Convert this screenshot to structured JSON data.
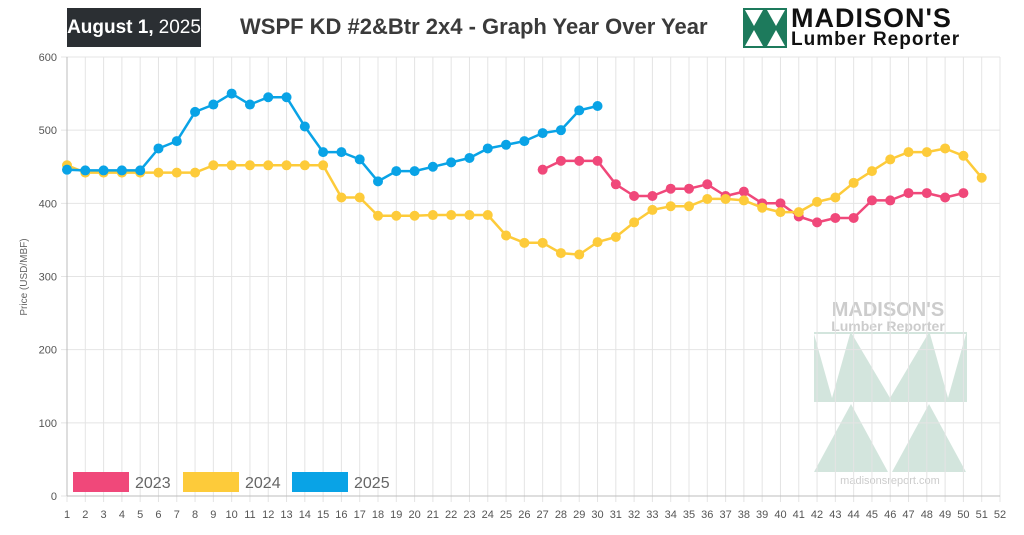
{
  "header": {
    "date_bold": "August 1,",
    "date_year": "2025",
    "title": "WSPF KD #2&Btr 2x4 - Graph Year Over Year",
    "logo_line1": "MADISON'S",
    "logo_line2": "Lumber Reporter"
  },
  "watermark": {
    "line1": "MADISON'S",
    "line2": "Lumber Reporter",
    "url": "madisonsreport.com"
  },
  "colors": {
    "s2023": "#f0487a",
    "s2024": "#fdcb3a",
    "s2025": "#09a3e6",
    "logo_green": "#1d7a5c",
    "watermark_green": "#cfe3da"
  },
  "chart_data": {
    "type": "line",
    "ylabel": "Price  (USD/MBF)",
    "xlabel": "",
    "ylim": [
      0,
      600
    ],
    "yticks": [
      0,
      100,
      200,
      300,
      400,
      500,
      600
    ],
    "xticks": [
      1,
      2,
      3,
      4,
      5,
      6,
      7,
      8,
      9,
      10,
      11,
      12,
      13,
      14,
      15,
      16,
      17,
      18,
      19,
      20,
      21,
      22,
      23,
      24,
      25,
      26,
      27,
      28,
      29,
      30,
      31,
      32,
      33,
      34,
      35,
      36,
      37,
      38,
      39,
      40,
      41,
      42,
      43,
      44,
      45,
      46,
      47,
      48,
      49,
      50,
      51,
      52
    ],
    "grid": true,
    "legend_position": "bottom-left",
    "series": [
      {
        "name": "2023",
        "color": "#f0487a",
        "x": [
          27,
          28,
          29,
          30,
          31,
          32,
          33,
          34,
          35,
          36,
          37,
          38,
          39,
          40,
          41,
          42,
          43,
          44,
          45,
          46,
          47,
          48,
          49,
          50
        ],
        "values": [
          446,
          458,
          458,
          458,
          426,
          410,
          410,
          420,
          420,
          426,
          410,
          416,
          400,
          400,
          382,
          374,
          380,
          380,
          404,
          404,
          414,
          414,
          408,
          414
        ]
      },
      {
        "name": "2024",
        "color": "#fdcb3a",
        "x": [
          1,
          2,
          3,
          4,
          5,
          6,
          7,
          8,
          9,
          10,
          11,
          12,
          13,
          14,
          15,
          16,
          17,
          18,
          19,
          20,
          21,
          22,
          23,
          24,
          25,
          26,
          27,
          28,
          29,
          30,
          31,
          32,
          33,
          34,
          35,
          36,
          37,
          38,
          39,
          40,
          41,
          42,
          43,
          44,
          45,
          46,
          47,
          48,
          49,
          50,
          51
        ],
        "values": [
          452,
          442,
          442,
          442,
          442,
          442,
          442,
          442,
          452,
          452,
          452,
          452,
          452,
          452,
          452,
          408,
          408,
          383,
          383,
          383,
          384,
          384,
          384,
          384,
          356,
          346,
          346,
          332,
          330,
          347,
          354,
          374,
          391,
          396,
          396,
          406,
          406,
          404,
          394,
          388,
          388,
          402,
          408,
          428,
          444,
          460,
          470,
          470,
          475,
          465,
          435
        ]
      },
      {
        "name": "2025",
        "color": "#09a3e6",
        "x": [
          1,
          2,
          3,
          4,
          5,
          6,
          7,
          8,
          9,
          10,
          11,
          12,
          13,
          14,
          15,
          16,
          17,
          18,
          19,
          20,
          21,
          22,
          23,
          24,
          25,
          26,
          27,
          28,
          29,
          30
        ],
        "values": [
          446,
          445,
          445,
          445,
          445,
          475,
          485,
          525,
          535,
          550,
          535,
          545,
          545,
          505,
          470,
          470,
          460,
          430,
          444,
          444,
          450,
          456,
          462,
          475,
          480,
          485,
          496,
          500,
          527,
          533
        ]
      }
    ]
  }
}
